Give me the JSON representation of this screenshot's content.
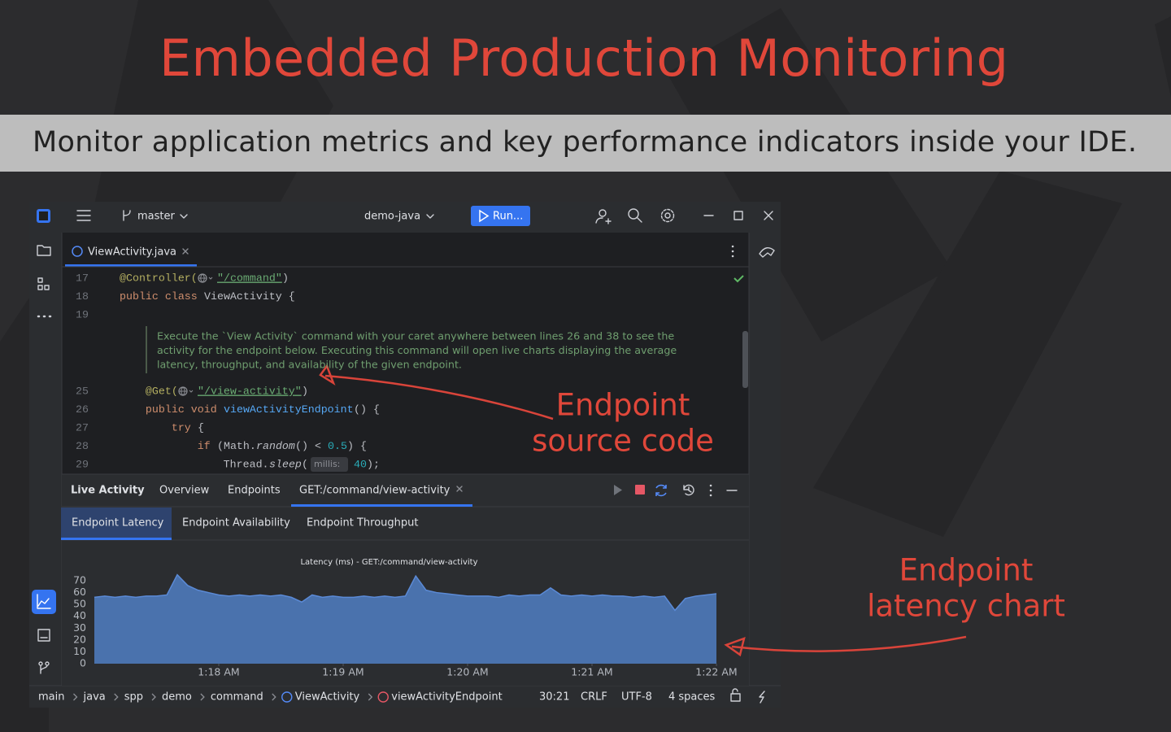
{
  "header": {
    "title": "Embedded Production Monitoring",
    "subtitle": "Monitor application metrics and key performance indicators inside your IDE."
  },
  "ide": {
    "toolbar": {
      "branch": "master",
      "project": "demo-java",
      "run": "Run..."
    },
    "editor_tab": "ViewActivity.java",
    "code": [
      {
        "line": "17",
        "tokens": [
          {
            "text": "@Controller(",
            "color": "#b3ae60"
          },
          {
            "icon": "globe"
          },
          {
            "text": "\"/command\"",
            "color": "#6aab73",
            "underline": true
          },
          {
            "text": ")",
            "color": "#bcbec4"
          }
        ]
      },
      {
        "line": "18",
        "tokens": [
          {
            "text": "public class ",
            "color": "#cf8e6d"
          },
          {
            "text": "ViewActivity {",
            "color": "#bcbec4"
          }
        ]
      },
      {
        "line": "19",
        "tokens": []
      },
      {
        "line": "25",
        "tokens": [
          {
            "text": "    @Get(",
            "color": "#b3ae60"
          },
          {
            "icon": "globe"
          },
          {
            "text": "\"/view-activity\"",
            "color": "#6aab73",
            "underline": true
          },
          {
            "text": ")",
            "color": "#bcbec4"
          }
        ]
      },
      {
        "line": "26",
        "tokens": [
          {
            "text": "    public void ",
            "color": "#cf8e6d"
          },
          {
            "text": "viewActivityEndpoint",
            "color": "#56a8f5"
          },
          {
            "text": "() {",
            "color": "#bcbec4"
          }
        ]
      },
      {
        "line": "27",
        "tokens": [
          {
            "text": "        try",
            "color": "#cf8e6d"
          },
          {
            "text": " {",
            "color": "#bcbec4"
          }
        ]
      },
      {
        "line": "28",
        "tokens": [
          {
            "text": "            if",
            "color": "#cf8e6d"
          },
          {
            "text": " (Math.",
            "color": "#bcbec4"
          },
          {
            "text": "random",
            "color": "#bcbec4",
            "italic": true
          },
          {
            "text": "() < ",
            "color": "#bcbec4"
          },
          {
            "text": "0.5",
            "color": "#2aacb8"
          },
          {
            "text": ") {",
            "color": "#bcbec4"
          }
        ]
      },
      {
        "line": "29",
        "tokens": [
          {
            "text": "                Thread.",
            "color": "#bcbec4"
          },
          {
            "text": "sleep",
            "color": "#bcbec4",
            "italic": true
          },
          {
            "text": "(",
            "color": "#bcbec4"
          },
          {
            "text": "millis:",
            "hint": true
          },
          {
            "text": "40",
            "color": "#2aacb8"
          },
          {
            "text": ");",
            "color": "#bcbec4"
          }
        ]
      }
    ],
    "doc_comment": [
      "Execute the `View Activity` command with your caret anywhere between lines 26 and 38 to see the",
      "activity for the endpoint below. Executing this command will open live charts displaying the average",
      "latency, throughput, and availability of the given endpoint."
    ],
    "panel_tabs": [
      "Live Activity",
      "Overview",
      "Endpoints",
      "GET:/command/view-activity"
    ],
    "chart_tabs": [
      "Endpoint Latency",
      "Endpoint Availability",
      "Endpoint Throughput"
    ],
    "breadcrumbs": [
      "main",
      "java",
      "spp",
      "demo",
      "command",
      "ViewActivity",
      "viewActivityEndpoint"
    ],
    "status_items": [
      "30:21",
      "CRLF",
      "UTF-8",
      "4 spaces"
    ]
  },
  "annotations": [
    {
      "lines": [
        "Endpoint",
        "source code"
      ]
    },
    {
      "lines": [
        "Endpoint",
        "latency chart"
      ]
    }
  ],
  "chart_data": {
    "type": "area",
    "title": "Latency (ms) - GET:/command/view-activity",
    "values": [
      56,
      57,
      56,
      57,
      56,
      57,
      57,
      58,
      75,
      66,
      62,
      60,
      58,
      57,
      58,
      57,
      58,
      57,
      58,
      56,
      52,
      58,
      56,
      57,
      56,
      56,
      57,
      56,
      57,
      56,
      57,
      74,
      62,
      60,
      59,
      58,
      57,
      57,
      57,
      56,
      58,
      57,
      58,
      58,
      64,
      58,
      57,
      58,
      57,
      58,
      57,
      57,
      56,
      57,
      56,
      57,
      45,
      55,
      57,
      58,
      59
    ],
    "color": "#4a72ad",
    "line_color": "#5b8ad6",
    "ylim": [
      0,
      75
    ],
    "yticks": [
      0,
      10,
      20,
      30,
      40,
      50,
      60,
      70
    ],
    "xlim": [
      0,
      60
    ],
    "xticks": [
      {
        "value": 12,
        "label": "1:18 AM"
      },
      {
        "value": 24,
        "label": "1:19 AM"
      },
      {
        "value": 36,
        "label": "1:20 AM"
      },
      {
        "value": 48,
        "label": "1:21 AM"
      },
      {
        "value": 60,
        "label": "1:22 AM"
      }
    ]
  }
}
